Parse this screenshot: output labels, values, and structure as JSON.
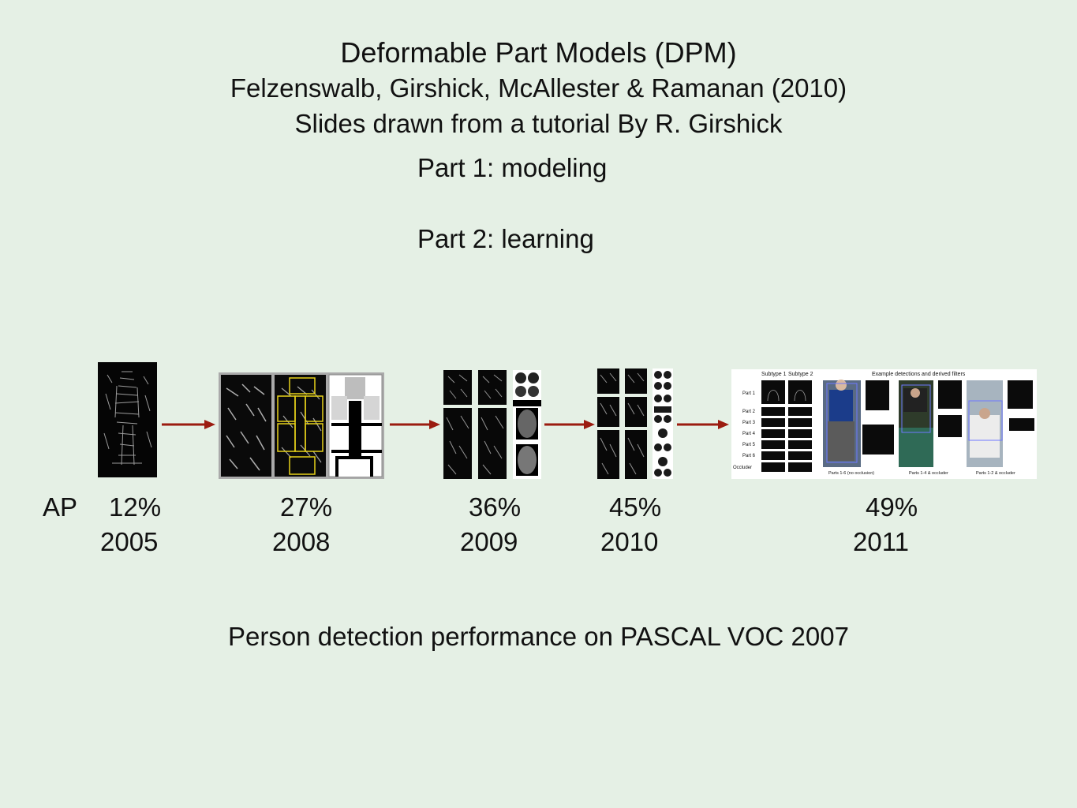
{
  "header": {
    "title": "Deformable Part Models (DPM)",
    "authors": "Felzenswalb, Girshick, McAllester & Ramanan (2010)",
    "credit": "Slides drawn from a tutorial By R. Girshick"
  },
  "parts": [
    "Part 1: modeling",
    "Part 2: learning"
  ],
  "timeline": {
    "ap_label": "AP",
    "entries": [
      {
        "ap": "12%",
        "year": "2005"
      },
      {
        "ap": "27%",
        "year": "2008"
      },
      {
        "ap": "36%",
        "year": "2009"
      },
      {
        "ap": "45%",
        "year": "2010"
      },
      {
        "ap": "49%",
        "year": "2011"
      }
    ]
  },
  "figure_2011": {
    "subtype_labels": [
      "Subtype 1",
      "Subtype 2"
    ],
    "examples_title": "Example detections and derived filters",
    "row_labels": [
      "Part 1",
      "Part 2",
      "Part 3",
      "Part 4",
      "Part 5",
      "Part 6",
      "Occluder"
    ],
    "captions": [
      "Parts 1-6 (no occlusion)",
      "Parts 1-4 & occluder",
      "Parts 1-2 & occluder"
    ]
  },
  "caption": "Person detection performance on PASCAL VOC 2007",
  "colors": {
    "background": "#e5f0e5",
    "arrow": "#9b1c10",
    "highlight_box": "#e8d21a"
  }
}
